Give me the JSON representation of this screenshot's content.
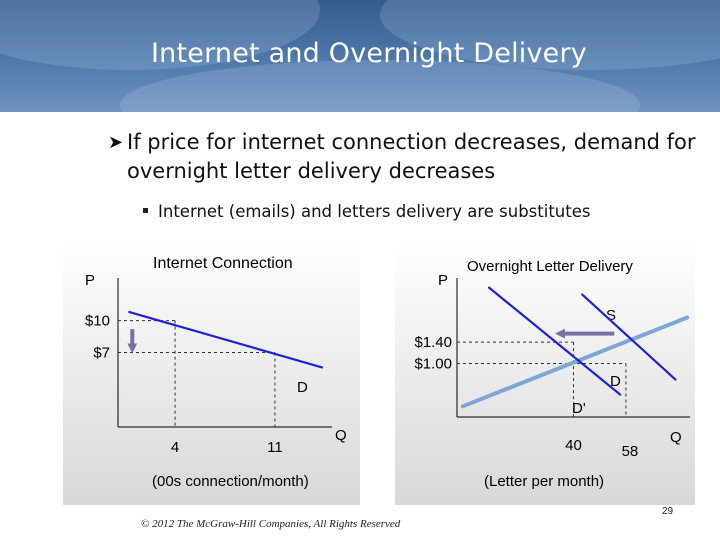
{
  "slide": {
    "title": "Internet and Overnight Delivery",
    "bullet_main": "If price for internet connection decreases, demand for overnight letter delivery decreases",
    "bullet_sub": "Internet (emails) and letters delivery are substitutes",
    "footer_copyright": "© 2012 The McGraw-Hill Companies, All Rights Reserved",
    "page_number": "29"
  },
  "colors": {
    "banner": "#4a74a6",
    "demand_line": "#1e22d6",
    "supply_line": "#7aa7d4",
    "arrow": "#7a6fa3",
    "dashed": "#333333"
  },
  "chart_data": [
    {
      "type": "line",
      "title": "Internet Connection",
      "xlabel": "(00s connection/month)",
      "ylabel": "P",
      "x_axis_name": "Q",
      "xlim": [
        0,
        15
      ],
      "ylim": [
        0,
        14
      ],
      "x_ticks": [
        {
          "value": 4,
          "label": "4"
        },
        {
          "value": 11,
          "label": "11"
        }
      ],
      "y_ticks": [
        {
          "value": 10,
          "label": "$10"
        },
        {
          "value": 7,
          "label": "$7"
        }
      ],
      "series": [
        {
          "name": "D",
          "points": [
            [
              0.8,
              10.8
            ],
            [
              14.3,
              5.6
            ]
          ]
        }
      ],
      "annotations": [
        {
          "type": "arrow",
          "from": [
            1.0,
            9.2
          ],
          "to": [
            1.0,
            7.3
          ],
          "meaning": "price decrease"
        }
      ]
    },
    {
      "type": "line",
      "title": "Overnight Letter Delivery",
      "xlabel": "(Letter per month)",
      "ylabel": "P",
      "x_axis_name": "Q",
      "xlim": [
        0,
        80
      ],
      "ylim": [
        0,
        2.6
      ],
      "x_ticks": [
        {
          "value": 40,
          "label": "40"
        },
        {
          "value": 58,
          "label": "58"
        }
      ],
      "y_ticks": [
        {
          "value": 1.4,
          "label": "$1.40"
        },
        {
          "value": 1.0,
          "label": "$1.00"
        }
      ],
      "series": [
        {
          "name": "S",
          "points": [
            [
              2,
              0.2
            ],
            [
              79,
              1.86
            ]
          ]
        },
        {
          "name": "D",
          "points": [
            [
              43,
              2.29
            ],
            [
              75,
              0.7
            ]
          ]
        },
        {
          "name": "D'",
          "points": [
            [
              11,
              2.42
            ],
            [
              56,
              0.42
            ]
          ]
        }
      ],
      "annotations": [
        {
          "type": "arrow",
          "from": [
            54,
            1.56
          ],
          "to": [
            35,
            1.56
          ],
          "meaning": "demand shifts left"
        }
      ]
    }
  ]
}
